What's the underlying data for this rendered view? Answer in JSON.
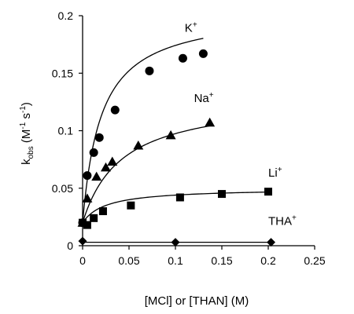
{
  "chart_data": {
    "type": "scatter",
    "xlabel": "[MCl] or [THAN] (M)",
    "ylabel": {
      "main": "k",
      "sub": "obs",
      "units_pre": " (M",
      "units_exp1": "-1",
      "units_mid": " s",
      "units_exp2": "-1",
      "units_post": ")"
    },
    "xlim": [
      0,
      0.25
    ],
    "ylim": [
      0,
      0.2
    ],
    "x_ticks": [
      0,
      0.05,
      0.1,
      0.15,
      0.2,
      0.25
    ],
    "x_tick_labels": [
      "0",
      "0.05",
      "0.1",
      "0.15",
      "0.2",
      "0.25"
    ],
    "y_ticks": [
      0,
      0.05,
      0.1,
      0.15,
      0.2
    ],
    "y_tick_labels": [
      "0",
      "0.05",
      "0.1",
      "0.15",
      "0.2"
    ],
    "grid": false,
    "series": [
      {
        "name": "K+",
        "label_base": "K",
        "label_sup": "+",
        "marker": "circle",
        "x": [
          0,
          0.005,
          0.012,
          0.018,
          0.035,
          0.072,
          0.108,
          0.13
        ],
        "y": [
          0.02,
          0.061,
          0.081,
          0.094,
          0.118,
          0.152,
          0.163,
          0.167
        ],
        "fit": {
          "vmax": 0.185,
          "k": 0.02,
          "y0": 0.02
        },
        "label_at": [
          0.11,
          0.186
        ]
      },
      {
        "name": "Na+",
        "label_base": "Na",
        "label_sup": "+",
        "marker": "triangle",
        "x": [
          0,
          0.005,
          0.015,
          0.025,
          0.032,
          0.06,
          0.095,
          0.137
        ],
        "y": [
          0.02,
          0.041,
          0.06,
          0.068,
          0.073,
          0.087,
          0.096,
          0.107
        ],
        "fit": {
          "vmax": 0.11,
          "k": 0.042,
          "y0": 0.02
        },
        "label_at": [
          0.12,
          0.125
        ]
      },
      {
        "name": "Li+",
        "label_base": "Li",
        "label_sup": "+",
        "marker": "square",
        "x": [
          0,
          0.005,
          0.012,
          0.022,
          0.052,
          0.105,
          0.15,
          0.2
        ],
        "y": [
          0.02,
          0.018,
          0.024,
          0.03,
          0.035,
          0.042,
          0.045,
          0.047
        ],
        "fit": {
          "vmax": 0.03,
          "k": 0.025,
          "y0": 0.02
        },
        "label_at": [
          0.2,
          0.06
        ]
      },
      {
        "name": "THA+",
        "label_base": "THA",
        "label_sup": "+",
        "marker": "diamond",
        "x": [
          0,
          0.1,
          0.203
        ],
        "y": [
          0.004,
          0.003,
          0.003
        ],
        "fit": {
          "vmax": 0,
          "k": 1,
          "y0": 0.003
        },
        "label_at": [
          0.2,
          0.018
        ]
      }
    ]
  }
}
